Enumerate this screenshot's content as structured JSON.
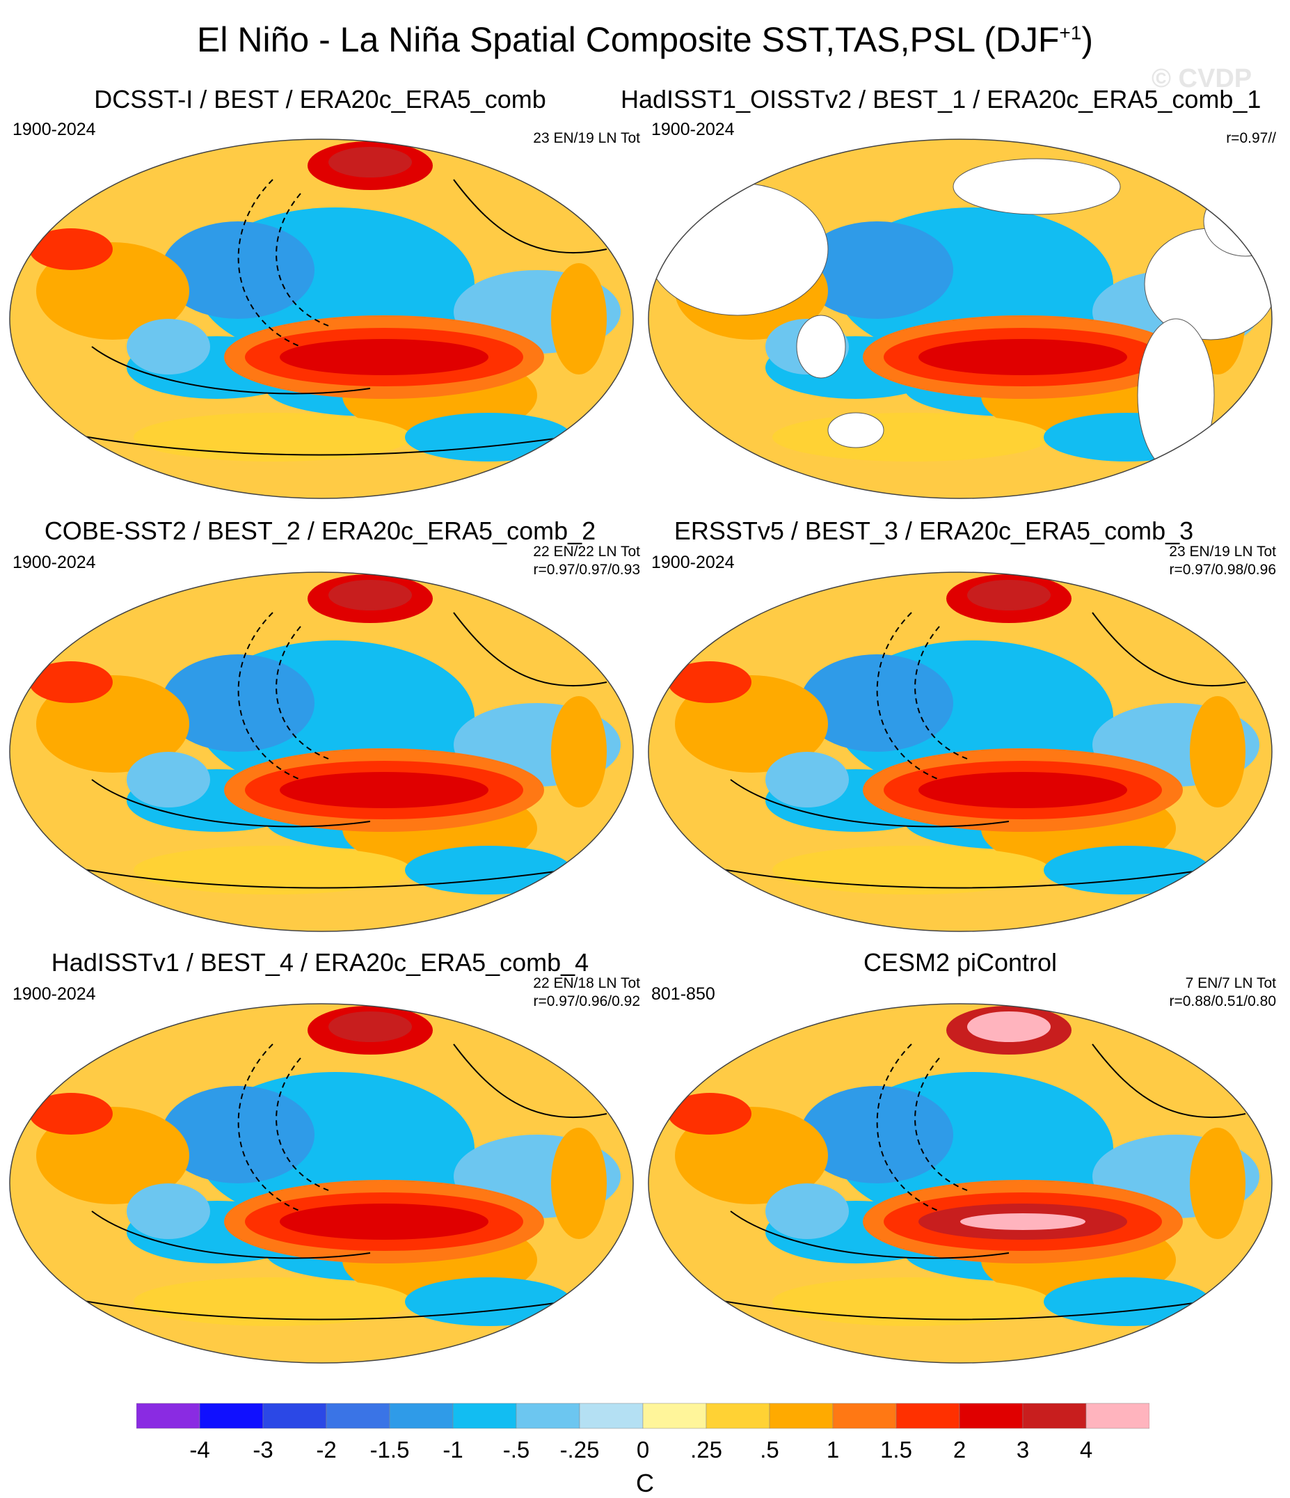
{
  "title": {
    "main": "El Niño - La Niña Spatial Composite SST,TAS,PSL (DJF",
    "sup": "+1",
    "close": ")"
  },
  "watermark": "© CVDP",
  "chart_data": [
    {
      "type": "heatmap",
      "title": "DCSST-I / BEST / ERA20c_ERA5_comb",
      "period": "1900-2024",
      "stats": [
        "23 EN/19 LN Tot"
      ],
      "land_masked": false,
      "psl_contours": true,
      "enso_peak_C": 2.5,
      "arctic_warm_C": 3.0
    },
    {
      "type": "heatmap",
      "title": "HadISST1_OISSTv2 / BEST_1 / ERA20c_ERA5_comb_1",
      "period": "1900-2024",
      "stats": [
        "r=0.97//"
      ],
      "land_masked": true,
      "psl_contours": false,
      "enso_peak_C": 2.5,
      "arctic_warm_C": 0
    },
    {
      "type": "heatmap",
      "title": "COBE-SST2 / BEST_2 / ERA20c_ERA5_comb_2",
      "period": "1900-2024",
      "stats": [
        "22 EN/22 LN Tot",
        "r=0.97/0.97/0.93"
      ],
      "land_masked": false,
      "psl_contours": true,
      "enso_peak_C": 2.5,
      "arctic_warm_C": 3.0
    },
    {
      "type": "heatmap",
      "title": "ERSSTv5 / BEST_3 / ERA20c_ERA5_comb_3",
      "period": "1900-2024",
      "stats": [
        "23 EN/19 LN Tot",
        "r=0.97/0.98/0.96"
      ],
      "land_masked": false,
      "psl_contours": true,
      "enso_peak_C": 2.5,
      "arctic_warm_C": 3.5
    },
    {
      "type": "heatmap",
      "title": "HadISSTv1 / BEST_4 / ERA20c_ERA5_comb_4",
      "period": "1900-2024",
      "stats": [
        "22 EN/18 LN Tot",
        "r=0.97/0.96/0.92"
      ],
      "land_masked": false,
      "psl_contours": true,
      "enso_peak_C": 2.5,
      "arctic_warm_C": 3.0
    },
    {
      "type": "heatmap",
      "title": "CESM2 piControl",
      "period": "801-850",
      "stats": [
        "7 EN/7 LN Tot",
        "r=0.88/0.51/0.80"
      ],
      "land_masked": false,
      "psl_contours": true,
      "enso_peak_C": 4.5,
      "arctic_warm_C": 4.5
    }
  ],
  "colorbar": {
    "colors": [
      "#8a2be2",
      "#1010ff",
      "#2b48e6",
      "#3a74e6",
      "#2f9be8",
      "#12bdf2",
      "#6cc6f0",
      "#b4e0f3",
      "#fff59a",
      "#ffd234",
      "#ffaa00",
      "#ff7814",
      "#ff3000",
      "#e00000",
      "#c81e1e",
      "#ffb4be"
    ],
    "tick_labels": [
      "-4",
      "-3",
      "-2",
      "-1.5",
      "-1",
      "-.5",
      "-.25",
      "0",
      ".25",
      ".5",
      "1",
      "1.5",
      "2",
      "3",
      "4"
    ],
    "levels": [
      -4,
      -3,
      -2,
      -1.5,
      -1,
      -0.5,
      -0.25,
      0,
      0.25,
      0.5,
      1,
      1.5,
      2,
      3,
      4
    ],
    "unit": "C"
  }
}
